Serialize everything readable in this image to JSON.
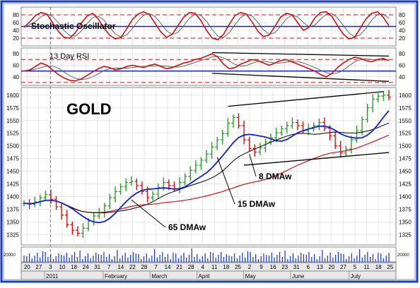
{
  "chart_data": {
    "type": "line",
    "title": "GOLD",
    "colors": {
      "price_up": "#2e9a2e",
      "price_down": "#cc1111",
      "ma_short": "#1020d0",
      "ma_long": "#cc1111",
      "volume": "#1030d0",
      "ref_line": "#1020d0",
      "guide_dash": "#cc1111"
    },
    "dates_visible_axis": {
      "day_ticks": [
        "20",
        "27",
        "3",
        "10",
        "18",
        "24",
        "31",
        "7",
        "14",
        "22",
        "28",
        "7",
        "14",
        "21",
        "28",
        "4",
        "11",
        "18",
        "25",
        "2",
        "9",
        "16",
        "23",
        "31",
        "6",
        "13",
        "20",
        "27",
        "5",
        "11",
        "18",
        "25"
      ],
      "months": [
        "2011",
        "February",
        "March",
        "April",
        "May",
        "June",
        "July"
      ]
    },
    "stochastic": {
      "label": "Stochastic Oscillator",
      "y_ticks": [
        "80",
        "60",
        "40",
        "20"
      ],
      "ylim": [
        0,
        100
      ],
      "ref_levels": [
        20,
        50,
        80
      ],
      "values": [
        48,
        62,
        78,
        86,
        82,
        60,
        38,
        22,
        20,
        34,
        58,
        76,
        84,
        70,
        46,
        28,
        18,
        22,
        44,
        68,
        82,
        88,
        80,
        58,
        36,
        22,
        30,
        52,
        74,
        86,
        84,
        66,
        40,
        20,
        16,
        30,
        56,
        78,
        86,
        82,
        62,
        38,
        24,
        28,
        50,
        74,
        84,
        80,
        60,
        40,
        48,
        72,
        86,
        88,
        76,
        52,
        30,
        18,
        22,
        46,
        70,
        84,
        88,
        74,
        52
      ]
    },
    "rsi": {
      "label": "13 Day RSI",
      "y_ticks": [
        "80",
        "60",
        "40"
      ],
      "ylim": [
        25,
        90
      ],
      "ref_levels": [
        30,
        50,
        70
      ],
      "values": [
        50,
        52,
        58,
        64,
        60,
        52,
        44,
        38,
        34,
        33,
        36,
        42,
        48,
        54,
        58,
        56,
        52,
        54,
        58,
        60,
        58,
        56,
        60,
        62,
        58,
        54,
        56,
        60,
        64,
        66,
        70,
        72,
        76,
        80,
        74,
        62,
        54,
        56,
        62,
        66,
        70,
        68,
        64,
        60,
        64,
        68,
        70,
        66,
        62,
        58,
        54,
        50,
        44,
        40,
        46,
        56,
        64,
        70,
        74,
        72,
        68,
        66,
        70,
        72,
        68
      ]
    },
    "price": {
      "y_ticks": [
        "1600",
        "1575",
        "1550",
        "1525",
        "1500",
        "1475",
        "1450",
        "1425",
        "1400",
        "1375",
        "1350",
        "1325"
      ],
      "ylim": [
        1305,
        1615
      ],
      "close": [
        1387,
        1385,
        1390,
        1398,
        1404,
        1395,
        1380,
        1364,
        1345,
        1334,
        1328,
        1338,
        1352,
        1362,
        1368,
        1382,
        1398,
        1410,
        1420,
        1428,
        1430,
        1422,
        1410,
        1398,
        1405,
        1418,
        1428,
        1422,
        1416,
        1428,
        1440,
        1452,
        1462,
        1472,
        1484,
        1498,
        1512,
        1524,
        1545,
        1556,
        1540,
        1512,
        1495,
        1488,
        1496,
        1508,
        1516,
        1526,
        1534,
        1540,
        1546,
        1540,
        1530,
        1534,
        1540,
        1546,
        1535,
        1520,
        1500,
        1486,
        1494,
        1512,
        1530,
        1552,
        1575,
        1592,
        1598,
        1600,
        1596
      ]
    },
    "annotations": {
      "ma8": "8 DMAw",
      "ma15": "15 DMAw",
      "ma65": "65 DMAw"
    },
    "volume": {
      "y_ticks": [
        "20000"
      ]
    }
  }
}
